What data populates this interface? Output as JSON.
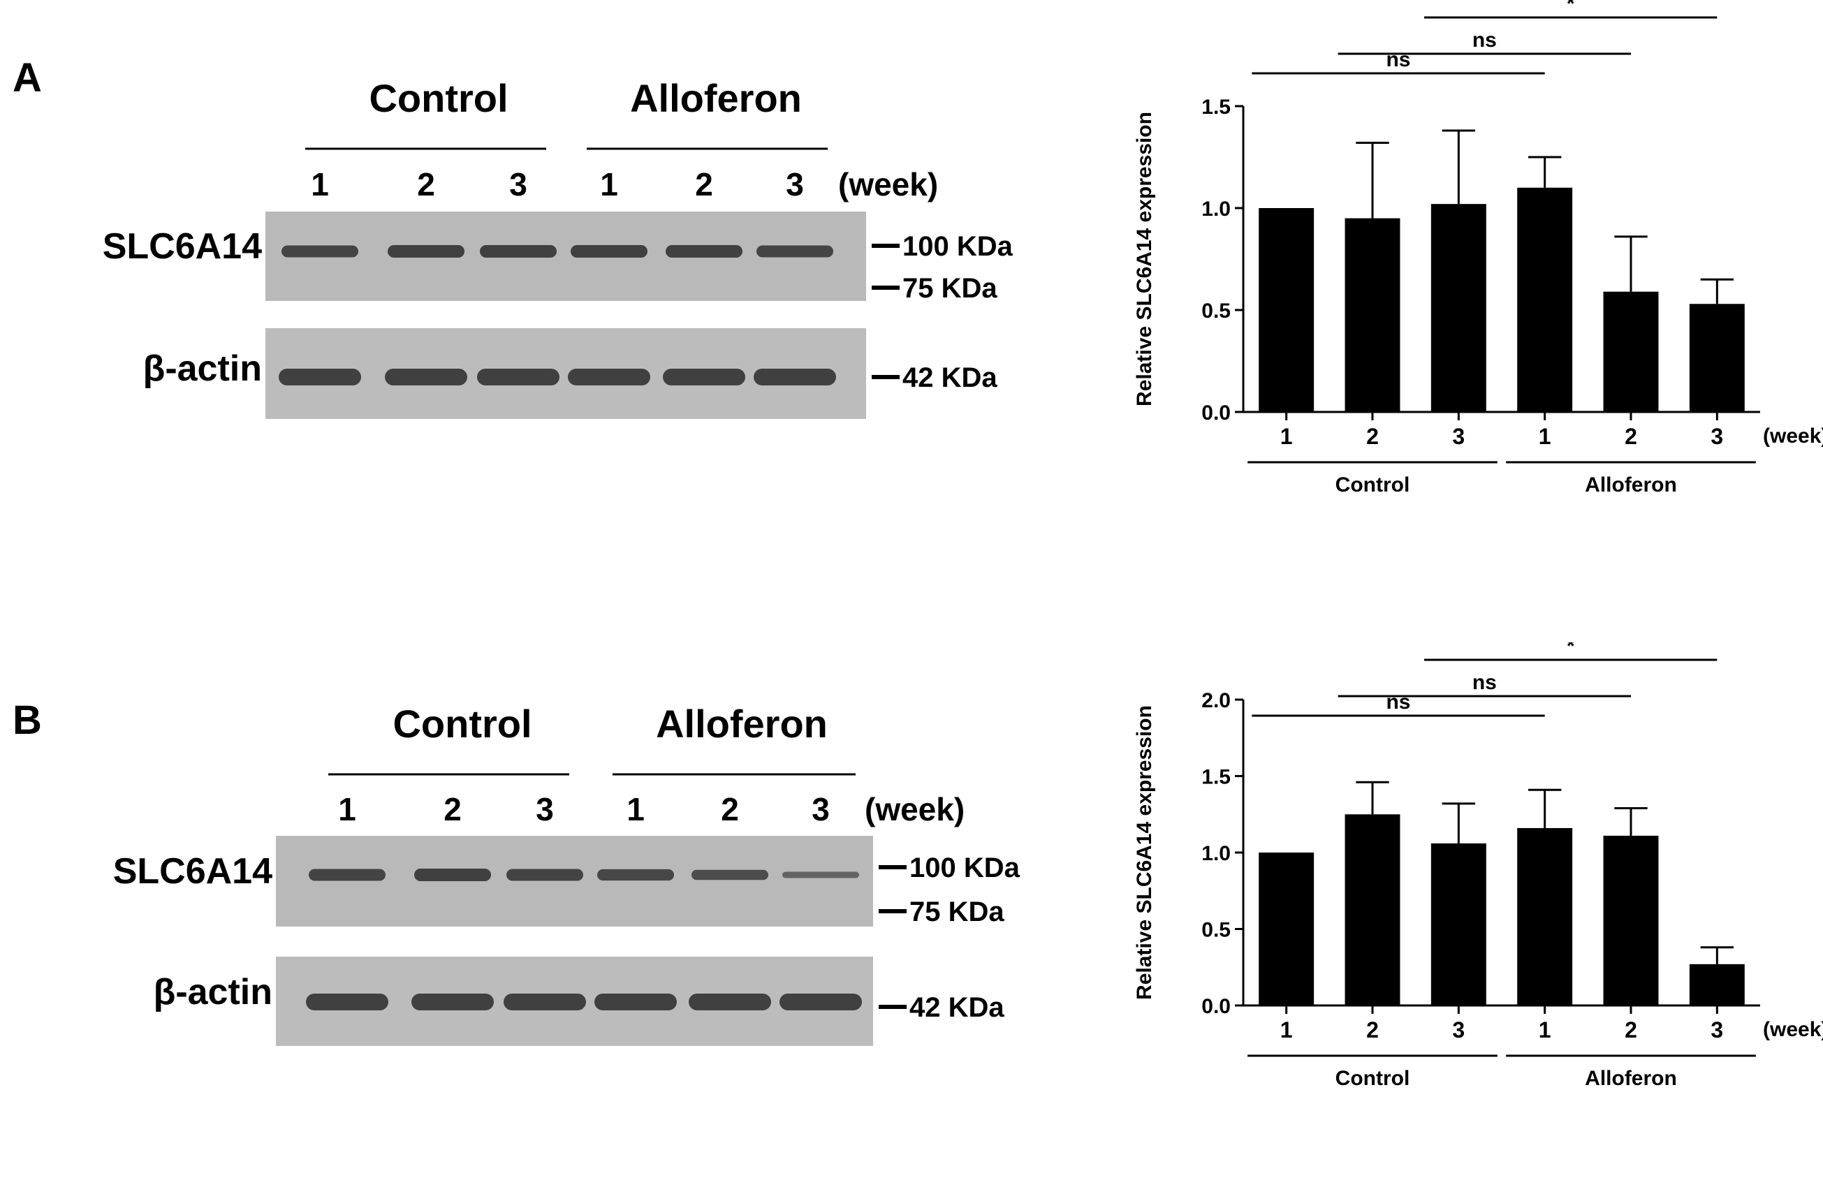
{
  "panels": [
    {
      "letter": "A",
      "blot": {
        "groups": [
          "Control",
          "Alloferon"
        ],
        "lanes": [
          "1",
          "2",
          "3",
          "1",
          "2",
          "3"
        ],
        "unit_label": "(week)",
        "rows": [
          {
            "label": "SLC6A14",
            "markers": [
              "100 KDa",
              "75 KDa"
            ]
          },
          {
            "label": "β-actin",
            "markers": [
              "42 KDa"
            ]
          }
        ]
      },
      "chart_data": {
        "type": "bar",
        "categories": [
          "1",
          "2",
          "3",
          "1",
          "2",
          "3"
        ],
        "tick_unit": "(week)",
        "group_labels": [
          "Control",
          "Alloferon"
        ],
        "values": [
          1.0,
          0.95,
          1.02,
          1.1,
          0.59,
          0.53
        ],
        "errors": [
          0.0,
          0.37,
          0.36,
          0.15,
          0.27,
          0.12
        ],
        "ylabel": "Relative SLC6A14 expression",
        "ylim": [
          0,
          1.5
        ],
        "yticks": [
          "0.0",
          "0.5",
          "1.0",
          "1.5"
        ],
        "significance": [
          {
            "from": 1,
            "to": 4,
            "label": "ns"
          },
          {
            "from": 2,
            "to": 5,
            "label": "ns"
          },
          {
            "from": 3,
            "to": 6,
            "label": "*"
          }
        ],
        "grid": false,
        "legend": "none",
        "bar_color": "#000000"
      }
    },
    {
      "letter": "B",
      "blot": {
        "groups": [
          "Control",
          "Alloferon"
        ],
        "lanes": [
          "1",
          "2",
          "3",
          "1",
          "2",
          "3"
        ],
        "unit_label": "(week)",
        "rows": [
          {
            "label": "SLC6A14",
            "markers": [
              "100 KDa",
              "75 KDa"
            ]
          },
          {
            "label": "β-actin",
            "markers": [
              "42 KDa"
            ]
          }
        ]
      },
      "chart_data": {
        "type": "bar",
        "categories": [
          "1",
          "2",
          "3",
          "1",
          "2",
          "3"
        ],
        "tick_unit": "(week)",
        "group_labels": [
          "Control",
          "Alloferon"
        ],
        "values": [
          1.0,
          1.25,
          1.06,
          1.16,
          1.11,
          0.27
        ],
        "errors": [
          0.0,
          0.21,
          0.26,
          0.25,
          0.18,
          0.11
        ],
        "ylabel": "Relative SLC6A14 expression",
        "ylim": [
          0,
          2.0
        ],
        "yticks": [
          "0.0",
          "0.5",
          "1.0",
          "1.5",
          "2.0"
        ],
        "significance": [
          {
            "from": 1,
            "to": 4,
            "label": "ns"
          },
          {
            "from": 2,
            "to": 5,
            "label": "ns"
          },
          {
            "from": 3,
            "to": 6,
            "label": "*"
          }
        ],
        "grid": false,
        "legend": "none",
        "bar_color": "#000000"
      }
    }
  ]
}
